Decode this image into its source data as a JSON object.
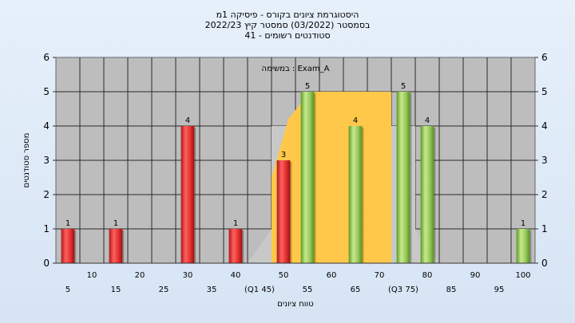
{
  "chart_data": {
    "type": "bar",
    "title_lines": [
      "היסטוגרמת ציונים בקורס - פיסיקה 1מ",
      "בסמסטר  (03/2022)  סמסטר קיץ 2022/23",
      "סטודנטים רשומים - 41"
    ],
    "annotation": "במשימה : Exam_A",
    "xlabel": "טווח ציונים",
    "ylabel": "מספר סטודנטים",
    "ylim": [
      0,
      6
    ],
    "yticks": [
      0,
      1,
      2,
      3,
      4,
      5,
      6
    ],
    "grid": true,
    "x_tick_labels_row1": [
      "10",
      "20",
      "30",
      "40",
      "50",
      "60",
      "70",
      "80",
      "90",
      "100"
    ],
    "x_tick_labels_row2": [
      "5",
      "15",
      "25",
      "35",
      "(Q1 45)",
      "55",
      "65",
      "(Q3 75)",
      "85",
      "95"
    ],
    "bins": [
      "5",
      "10",
      "15",
      "20",
      "25",
      "30",
      "35",
      "40",
      "45",
      "50",
      "55",
      "60",
      "65",
      "70",
      "75",
      "80",
      "85",
      "90",
      "95",
      "100"
    ],
    "series": [
      {
        "color": "#e03c3c",
        "points": [
          {
            "x": 5,
            "y": 1
          },
          {
            "x": 15,
            "y": 1
          },
          {
            "x": 30,
            "y": 4
          },
          {
            "x": 40,
            "y": 1
          },
          {
            "x": 50,
            "y": 3
          }
        ]
      },
      {
        "color": "#8cc04a",
        "points": [
          {
            "x": 55,
            "y": 5
          },
          {
            "x": 65,
            "y": 4
          },
          {
            "x": 75,
            "y": 5
          },
          {
            "x": 80,
            "y": 4
          },
          {
            "x": 100,
            "y": 1
          }
        ]
      }
    ],
    "box_region": {
      "q1": 45,
      "q3": 75,
      "median_area_color": "#ffc84a",
      "shade_color": "#c8c8c8"
    }
  }
}
